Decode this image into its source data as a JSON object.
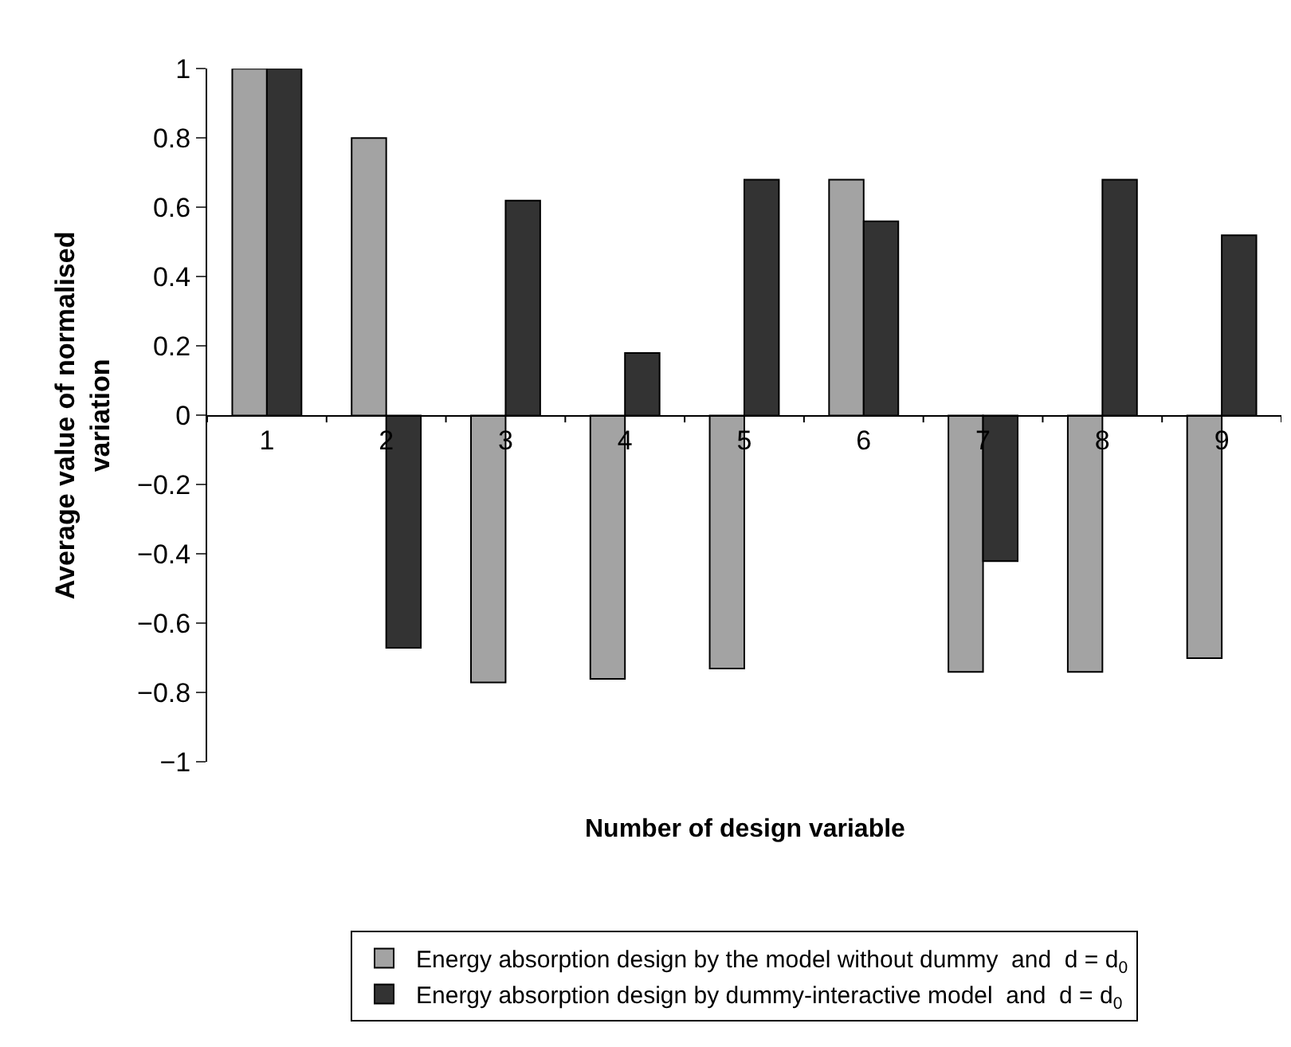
{
  "chart_data": {
    "type": "bar",
    "xlabel": "Number of design variable",
    "ylabel": "Average value of normalised\nvariation",
    "categories": [
      "1",
      "2",
      "3",
      "4",
      "5",
      "6",
      "7",
      "8",
      "9"
    ],
    "series": [
      {
        "name": "Energy absorption design by the model without dummy  and  d = d$_{0}$",
        "color": "#a3a3a3",
        "values": [
          1,
          0.8,
          -0.77,
          -0.76,
          -0.73,
          0.68,
          -0.74,
          -0.74,
          -0.7
        ]
      },
      {
        "name": "Energy absorption design by dummy-interactive model  and  d = d$_{0}$",
        "color": "#333333",
        "values": [
          1,
          -0.67,
          0.62,
          0.18,
          0.68,
          0.56,
          -0.42,
          0.68,
          0.52
        ]
      }
    ],
    "ylim": [
      -1,
      1
    ],
    "yticks": [
      {
        "value": -1,
        "label": "−1"
      },
      {
        "value": -0.8,
        "label": "−0.8"
      },
      {
        "value": -0.6,
        "label": "−0.6"
      },
      {
        "value": -0.4,
        "label": "−0.4"
      },
      {
        "value": -0.2,
        "label": "−0.2"
      },
      0,
      0.2,
      0.4,
      0.6,
      0.8,
      1
    ],
    "legend": "bottom"
  }
}
